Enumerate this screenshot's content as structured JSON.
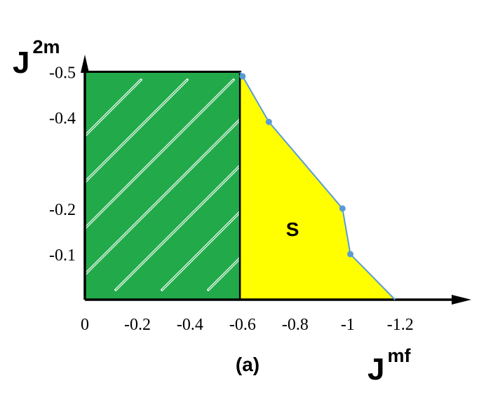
{
  "chart_data": {
    "type": "area",
    "xlabel": {
      "base": "J",
      "sup": "mf"
    },
    "ylabel": {
      "base": "J",
      "sup": "2m"
    },
    "xlim": [
      0,
      -1.39
    ],
    "ylim": [
      0,
      -0.51
    ],
    "x_ticks": [
      {
        "value": 0,
        "label": "0"
      },
      {
        "value": -0.2,
        "label": "-0.2"
      },
      {
        "value": -0.4,
        "label": "-0.4"
      },
      {
        "value": -0.6,
        "label": "-0.6"
      },
      {
        "value": -0.8,
        "label": "-0.8"
      },
      {
        "value": -1.0,
        "label": "-1"
      },
      {
        "value": -1.2,
        "label": "-1.2"
      }
    ],
    "y_ticks": [
      {
        "value": -0.1,
        "label": "-0.1"
      },
      {
        "value": -0.2,
        "label": "-0.2"
      },
      {
        "value": -0.4,
        "label": "-0.4"
      },
      {
        "value": -0.5,
        "label": "-0.5"
      }
    ],
    "hatched_region": {
      "x": [
        0,
        -0.59
      ],
      "y": [
        0,
        -0.5
      ],
      "color": "#22aa4a"
    },
    "boundary_series": {
      "color": "#5b9bd5",
      "points": [
        {
          "x": -0.59,
          "y": -0.5
        },
        {
          "x": -0.6,
          "y": -0.49
        },
        {
          "x": -0.7,
          "y": -0.39
        },
        {
          "x": -0.98,
          "y": -0.2
        },
        {
          "x": -1.01,
          "y": -0.1
        },
        {
          "x": -1.18,
          "y": 0
        }
      ],
      "markers": [
        {
          "x": -0.6,
          "y": -0.49
        },
        {
          "x": -0.7,
          "y": -0.39
        },
        {
          "x": -0.98,
          "y": -0.2
        },
        {
          "x": -1.01,
          "y": -0.1
        }
      ]
    },
    "fill_region": {
      "label": "S",
      "label_at": {
        "x": -0.79,
        "y": -0.155
      },
      "color": "#ffff00"
    },
    "panel_label": "(a)"
  }
}
